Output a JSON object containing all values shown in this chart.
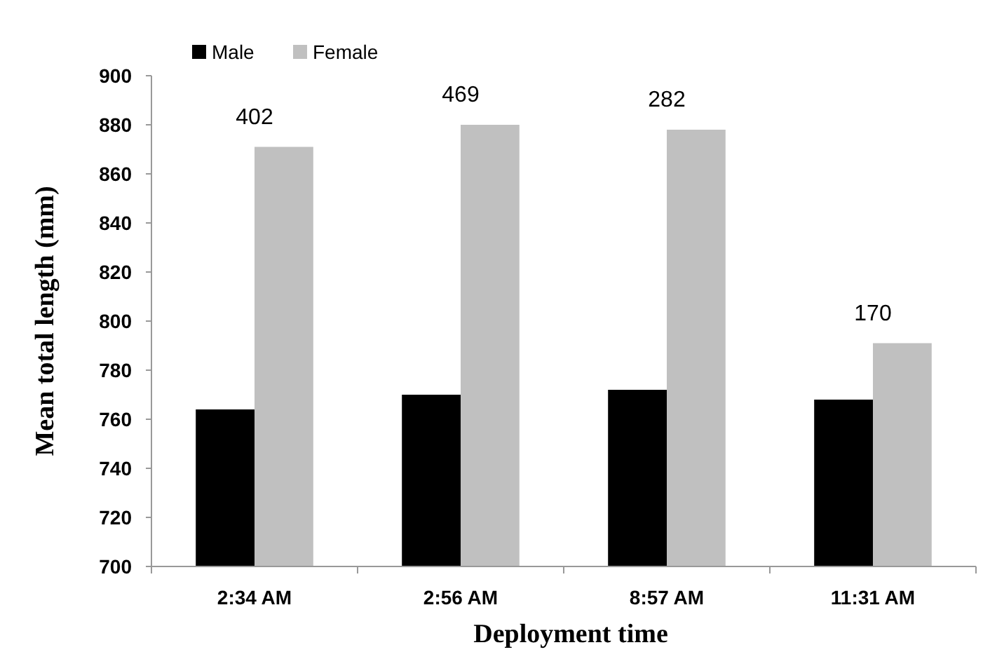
{
  "chart_data": {
    "type": "bar",
    "xlabel": "Deployment time",
    "ylabel": "Mean total length (mm)",
    "categories": [
      "2:34 AM",
      "2:56 AM",
      "8:57 AM",
      "11:31 AM"
    ],
    "series": [
      {
        "name": "Male",
        "color": "#000000",
        "values": [
          764,
          770,
          772,
          768
        ]
      },
      {
        "name": "Female",
        "color": "#c0c0c0",
        "values": [
          871,
          880,
          878,
          791
        ]
      }
    ],
    "ylim": [
      700,
      900
    ],
    "yticks": [
      700,
      720,
      740,
      760,
      780,
      800,
      820,
      840,
      860,
      880,
      900
    ],
    "legend": "top left",
    "annotations": [
      "402",
      "469",
      "282",
      "170"
    ]
  }
}
